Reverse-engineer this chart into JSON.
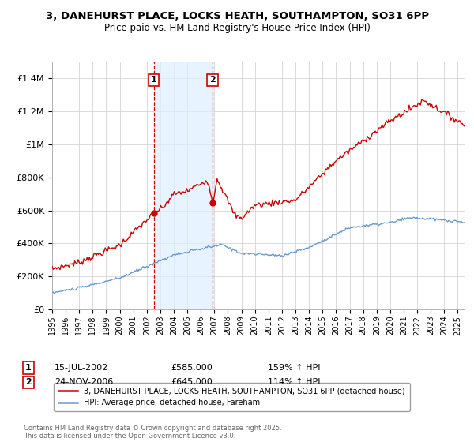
{
  "title_line1": "3, DANEHURST PLACE, LOCKS HEATH, SOUTHAMPTON, SO31 6PP",
  "title_line2": "Price paid vs. HM Land Registry's House Price Index (HPI)",
  "background_color": "#ffffff",
  "plot_bg_color": "#ffffff",
  "grid_color": "#cccccc",
  "red_line_color": "#cc0000",
  "blue_line_color": "#6699cc",
  "shade_color": "#ddeeff",
  "vline_color": "#cc0000",
  "sale1_date": "15-JUL-2002",
  "sale1_price": "£585,000",
  "sale1_hpi": "159% ↑ HPI",
  "sale2_date": "24-NOV-2006",
  "sale2_price": "£645,000",
  "sale2_hpi": "114% ↑ HPI",
  "legend_red": "3, DANEHURST PLACE, LOCKS HEATH, SOUTHAMPTON, SO31 6PP (detached house)",
  "legend_blue": "HPI: Average price, detached house, Fareham",
  "footnote": "Contains HM Land Registry data © Crown copyright and database right 2025.\nThis data is licensed under the Open Government Licence v3.0.",
  "ylim": [
    0,
    1500000
  ],
  "yticks": [
    0,
    200000,
    400000,
    600000,
    800000,
    1000000,
    1200000,
    1400000
  ],
  "ytick_labels": [
    "£0",
    "£200K",
    "£400K",
    "£600K",
    "£800K",
    "£1M",
    "£1.2M",
    "£1.4M"
  ],
  "sale1_year": 2002.54,
  "sale2_year": 2006.87,
  "xmin": 1995,
  "xmax": 2025.5
}
